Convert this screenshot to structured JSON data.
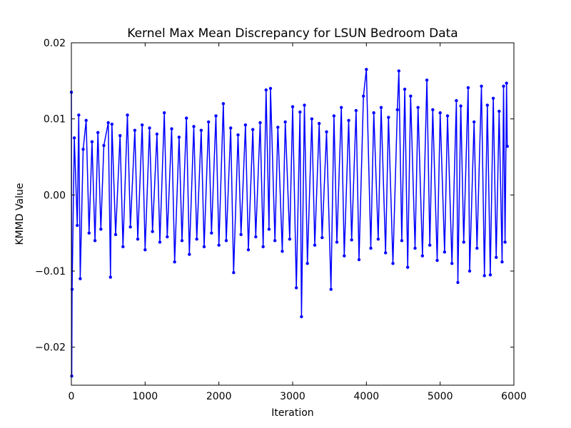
{
  "chart_data": {
    "type": "line",
    "title": "Kernel Max Mean Discrepancy for LSUN Bedroom Data",
    "xlabel": "Iteration",
    "ylabel": "KMMD Value",
    "xlim": [
      0,
      6000
    ],
    "ylim": [
      -0.025,
      0.02
    ],
    "xticks": [
      0,
      1000,
      2000,
      3000,
      4000,
      5000,
      6000
    ],
    "xtick_labels": [
      "0",
      "1000",
      "2000",
      "3000",
      "4000",
      "5000",
      "6000"
    ],
    "yticks": [
      -0.02,
      -0.01,
      0.0,
      0.01,
      0.02
    ],
    "ytick_labels": [
      "−0.02",
      "−0.01",
      "0.00",
      "0.01",
      "0.02"
    ],
    "grid": false,
    "legend": "none",
    "series": [
      {
        "color": "#0000ff",
        "marker": "dot",
        "x": [
          0,
          5,
          10,
          40,
          80,
          100,
          120,
          160,
          200,
          240,
          280,
          320,
          360,
          400,
          440,
          500,
          530,
          550,
          600,
          660,
          700,
          760,
          800,
          860,
          900,
          960,
          1000,
          1060,
          1100,
          1160,
          1200,
          1260,
          1300,
          1360,
          1400,
          1460,
          1500,
          1560,
          1600,
          1660,
          1700,
          1760,
          1800,
          1860,
          1900,
          1960,
          2000,
          2060,
          2100,
          2160,
          2200,
          2260,
          2300,
          2360,
          2400,
          2460,
          2500,
          2560,
          2600,
          2640,
          2680,
          2700,
          2760,
          2800,
          2860,
          2900,
          2960,
          3000,
          3050,
          3100,
          3120,
          3160,
          3200,
          3260,
          3300,
          3360,
          3400,
          3460,
          3520,
          3560,
          3600,
          3660,
          3700,
          3760,
          3800,
          3860,
          3900,
          3960,
          4000,
          4060,
          4100,
          4160,
          4200,
          4260,
          4300,
          4360,
          4420,
          4440,
          4480,
          4520,
          4560,
          4600,
          4660,
          4700,
          4760,
          4820,
          4860,
          4900,
          4960,
          5000,
          5060,
          5100,
          5160,
          5220,
          5240,
          5280,
          5320,
          5380,
          5400,
          5460,
          5500,
          5560,
          5600,
          5640,
          5680,
          5720,
          5760,
          5800,
          5840,
          5860,
          5880,
          5900,
          5910
        ],
        "y": [
          0.0135,
          -0.0238,
          -0.0124,
          0.0075,
          -0.004,
          0.0105,
          -0.011,
          0.006,
          0.0098,
          -0.005,
          0.007,
          -0.006,
          0.0082,
          -0.0045,
          0.0065,
          0.0095,
          -0.0108,
          0.0093,
          -0.0052,
          0.0078,
          -0.0068,
          0.0105,
          -0.0042,
          0.0085,
          -0.0058,
          0.0092,
          -0.0072,
          0.0088,
          -0.0048,
          0.008,
          -0.0062,
          0.0108,
          -0.0055,
          0.0087,
          -0.0088,
          0.0076,
          -0.006,
          0.0101,
          -0.0078,
          0.009,
          -0.0058,
          0.0085,
          -0.0068,
          0.0096,
          -0.005,
          0.0104,
          -0.0066,
          0.012,
          -0.006,
          0.0088,
          -0.0102,
          0.0079,
          -0.0052,
          0.0092,
          -0.0072,
          0.0086,
          -0.0055,
          0.0095,
          -0.0068,
          0.0138,
          -0.0045,
          0.014,
          -0.006,
          0.0089,
          -0.0074,
          0.0096,
          -0.0058,
          0.0116,
          -0.0122,
          0.0109,
          -0.016,
          0.0118,
          -0.009,
          0.01,
          -0.0066,
          0.0094,
          -0.0056,
          0.0083,
          -0.0124,
          0.0104,
          -0.0062,
          0.0115,
          -0.008,
          0.0098,
          -0.0059,
          0.0111,
          -0.0085,
          0.013,
          0.0165,
          -0.007,
          0.0108,
          -0.0058,
          0.0115,
          -0.0076,
          0.0102,
          -0.009,
          0.0112,
          0.0163,
          -0.006,
          0.0139,
          -0.0095,
          0.013,
          -0.007,
          0.0115,
          -0.008,
          0.0151,
          -0.0066,
          0.0112,
          -0.0086,
          0.0108,
          -0.0075,
          0.0104,
          -0.009,
          0.0124,
          -0.0115,
          0.0117,
          -0.0062,
          0.0141,
          -0.01,
          0.0096,
          -0.007,
          0.0143,
          -0.0106,
          0.0118,
          -0.0105,
          0.0127,
          -0.0082,
          0.011,
          -0.0088,
          0.0143,
          -0.0062,
          0.0147,
          0.0064
        ]
      }
    ]
  }
}
